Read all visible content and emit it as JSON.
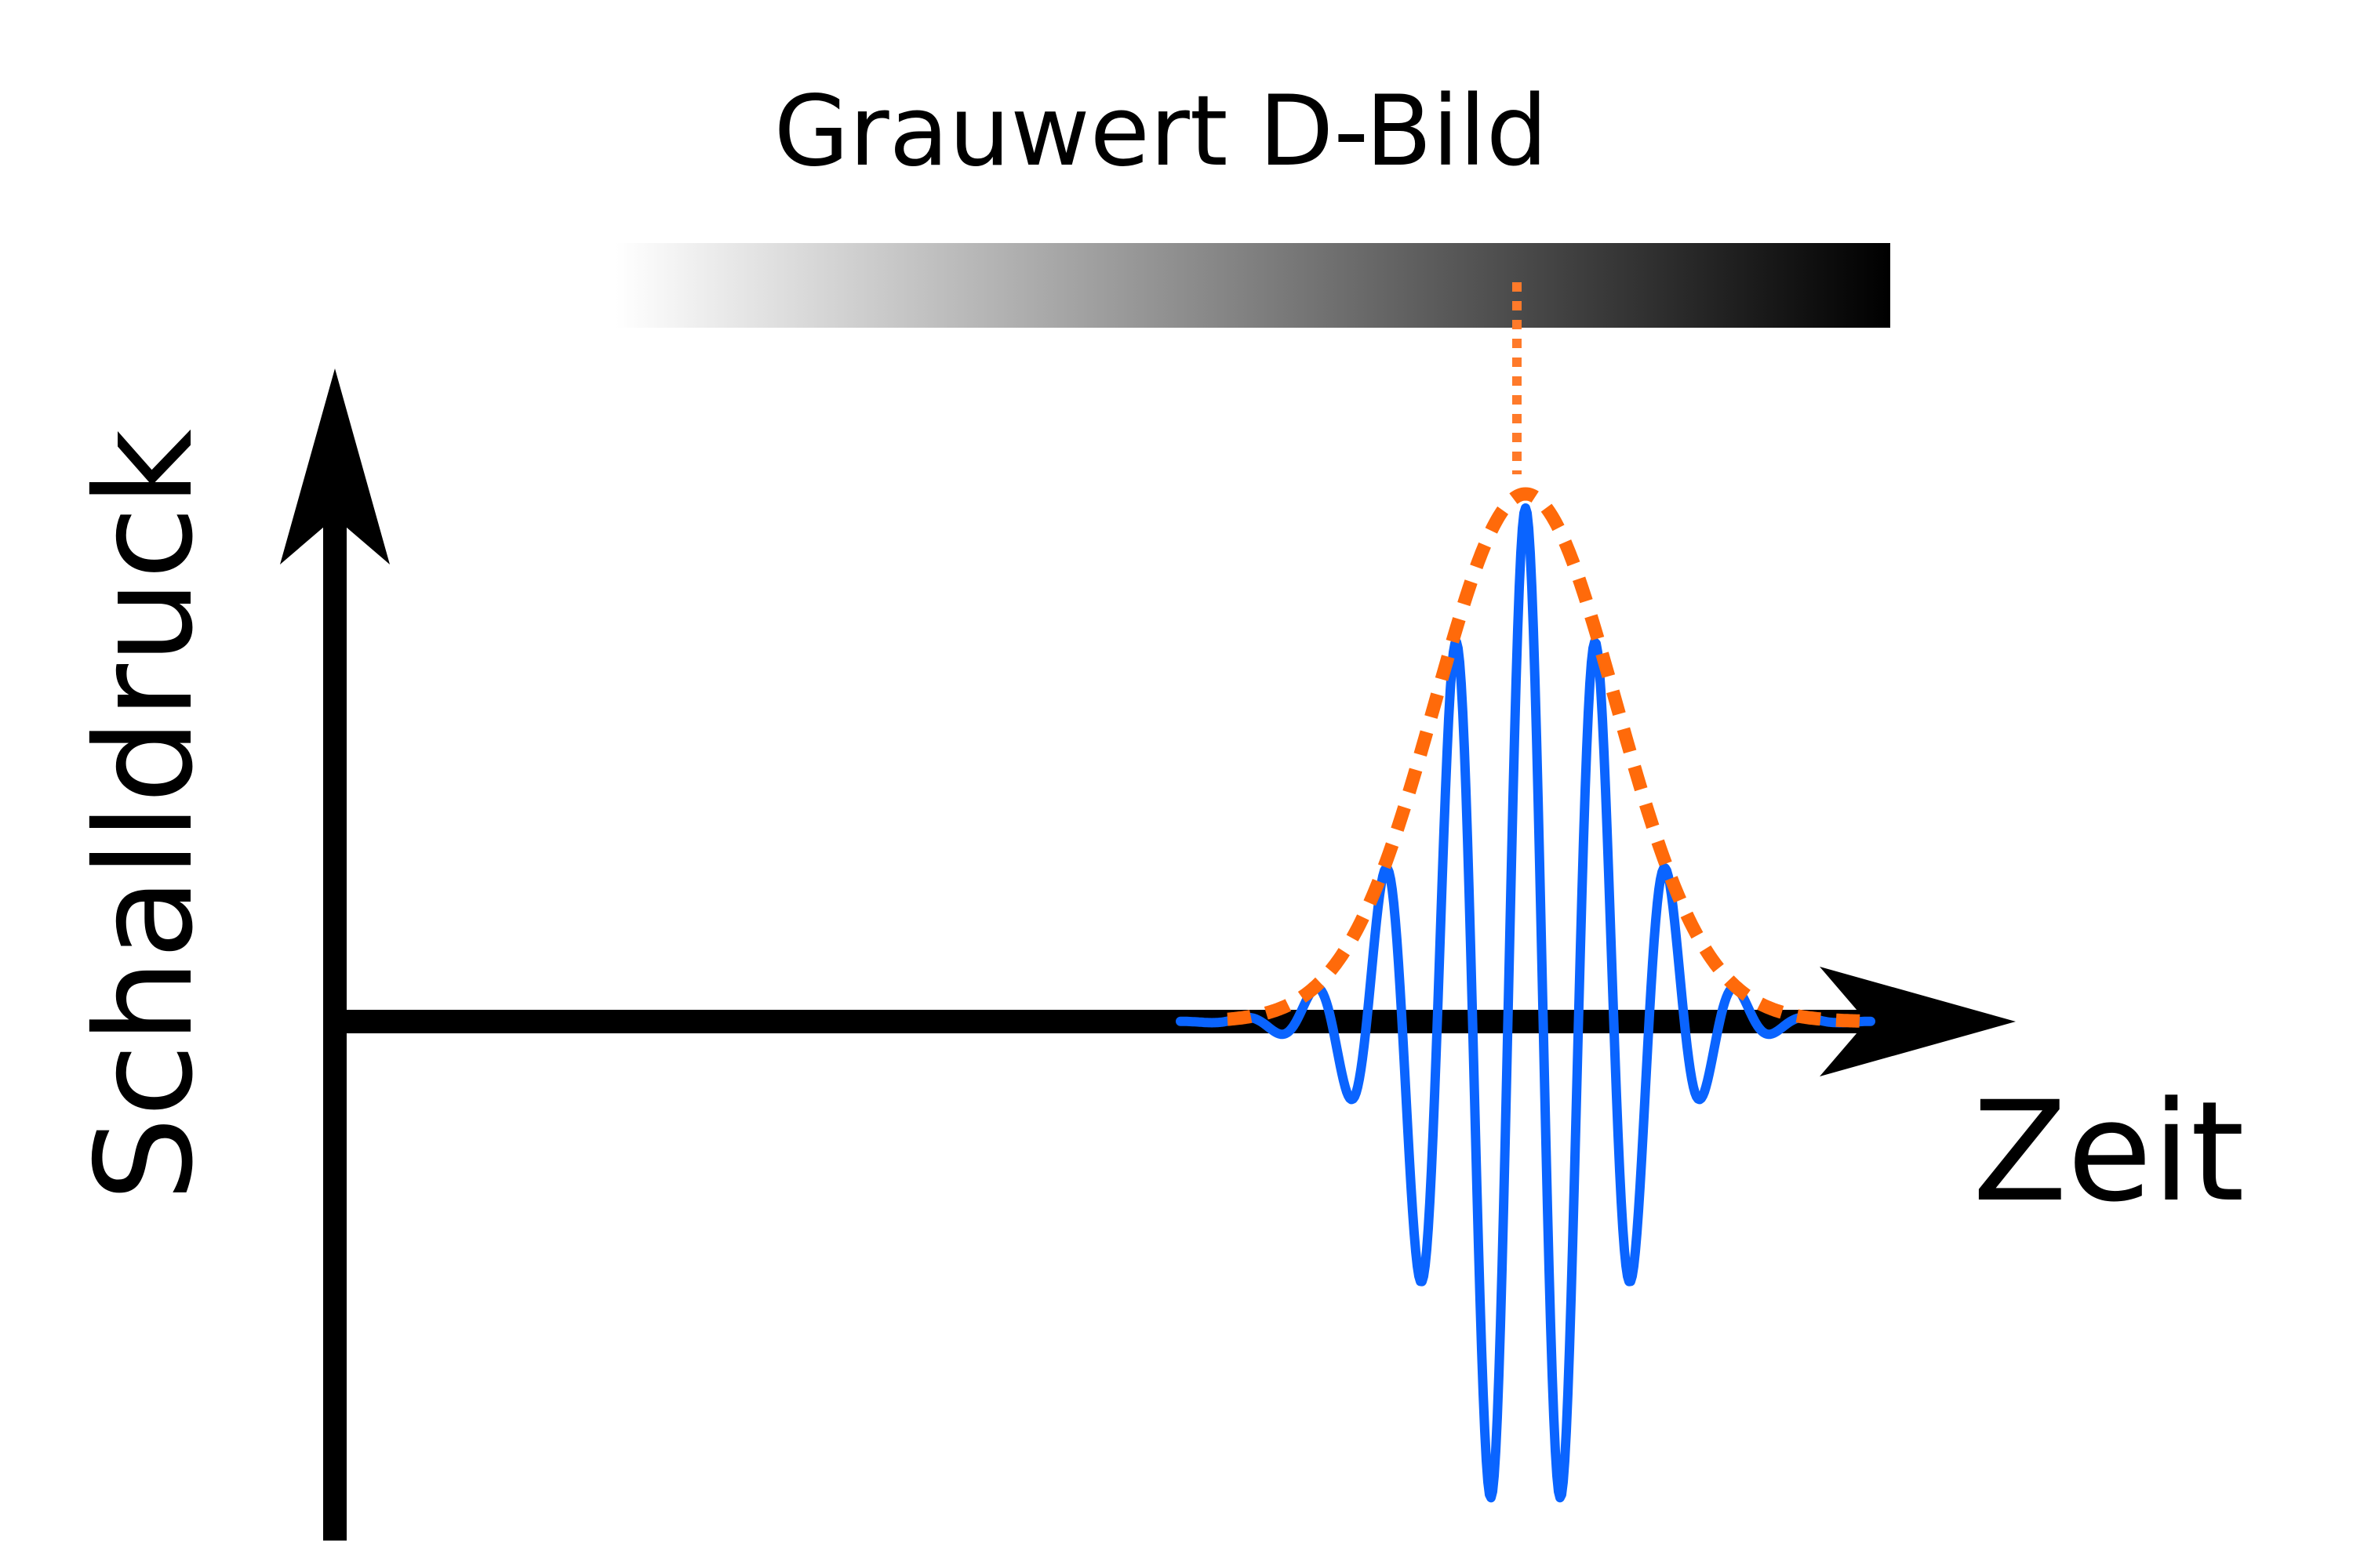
{
  "diagram": {
    "grayscale_title": "Grauwert D-Bild",
    "y_axis_label": "Schalldruck",
    "x_axis_label": "Zeit"
  },
  "colors": {
    "axis": "#000000",
    "signal": "#0a64ff",
    "envelope": "#ff6a0a",
    "gradient_start": "#ffffff",
    "gradient_end": "#000000"
  }
}
